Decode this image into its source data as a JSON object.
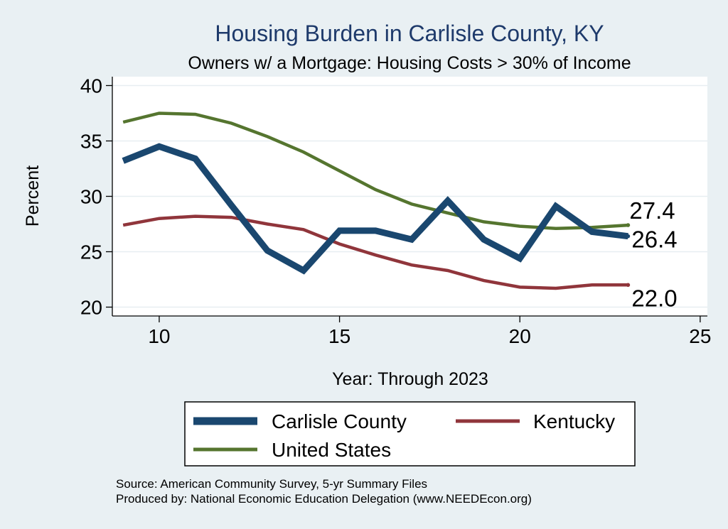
{
  "chart_data": {
    "type": "line",
    "title": "Housing Burden in Carlisle County, KY",
    "subtitle": "Owners w/ a Mortgage: Housing Costs > 30% of Income",
    "xlabel": "Year: Through 2023",
    "ylabel": "Percent",
    "xlim": [
      8.7,
      25.2
    ],
    "ylim": [
      19.2,
      40.8
    ],
    "xticks": [
      10,
      15,
      20,
      25
    ],
    "yticks": [
      20,
      25,
      30,
      35,
      40
    ],
    "grid": true,
    "legend_position": "bottom",
    "series": [
      {
        "name": "Carlisle County",
        "color": "#1a476f",
        "x": [
          9,
          10,
          11,
          12,
          13,
          14,
          15,
          16,
          17,
          18,
          19,
          20,
          21,
          22,
          23
        ],
        "values": [
          33.2,
          34.5,
          33.4,
          29.2,
          25.1,
          23.3,
          26.9,
          26.9,
          26.1,
          29.6,
          26.1,
          24.4,
          29.1,
          26.8,
          26.4
        ],
        "end_label": "26.4"
      },
      {
        "name": "Kentucky",
        "color": "#90353b",
        "x": [
          9,
          10,
          11,
          12,
          13,
          14,
          15,
          16,
          17,
          18,
          19,
          20,
          21,
          22,
          23
        ],
        "values": [
          27.4,
          28.0,
          28.2,
          28.1,
          27.5,
          27.0,
          25.7,
          24.7,
          23.8,
          23.3,
          22.4,
          21.8,
          21.7,
          22.0,
          22.0
        ],
        "end_label": "22.0"
      },
      {
        "name": "United States",
        "color": "#55752f",
        "x": [
          9,
          10,
          11,
          12,
          13,
          14,
          15,
          16,
          17,
          18,
          19,
          20,
          21,
          22,
          23
        ],
        "values": [
          36.7,
          37.5,
          37.4,
          36.6,
          35.4,
          34.0,
          32.3,
          30.6,
          29.3,
          28.5,
          27.7,
          27.3,
          27.1,
          27.2,
          27.4
        ],
        "end_label": "27.4"
      }
    ]
  },
  "footer": {
    "source": "Source: American Community Survey, 5-yr Summary Files",
    "produced_by": "Produced by: National Economic Education Delegation (www.NEEDEcon.org)"
  }
}
